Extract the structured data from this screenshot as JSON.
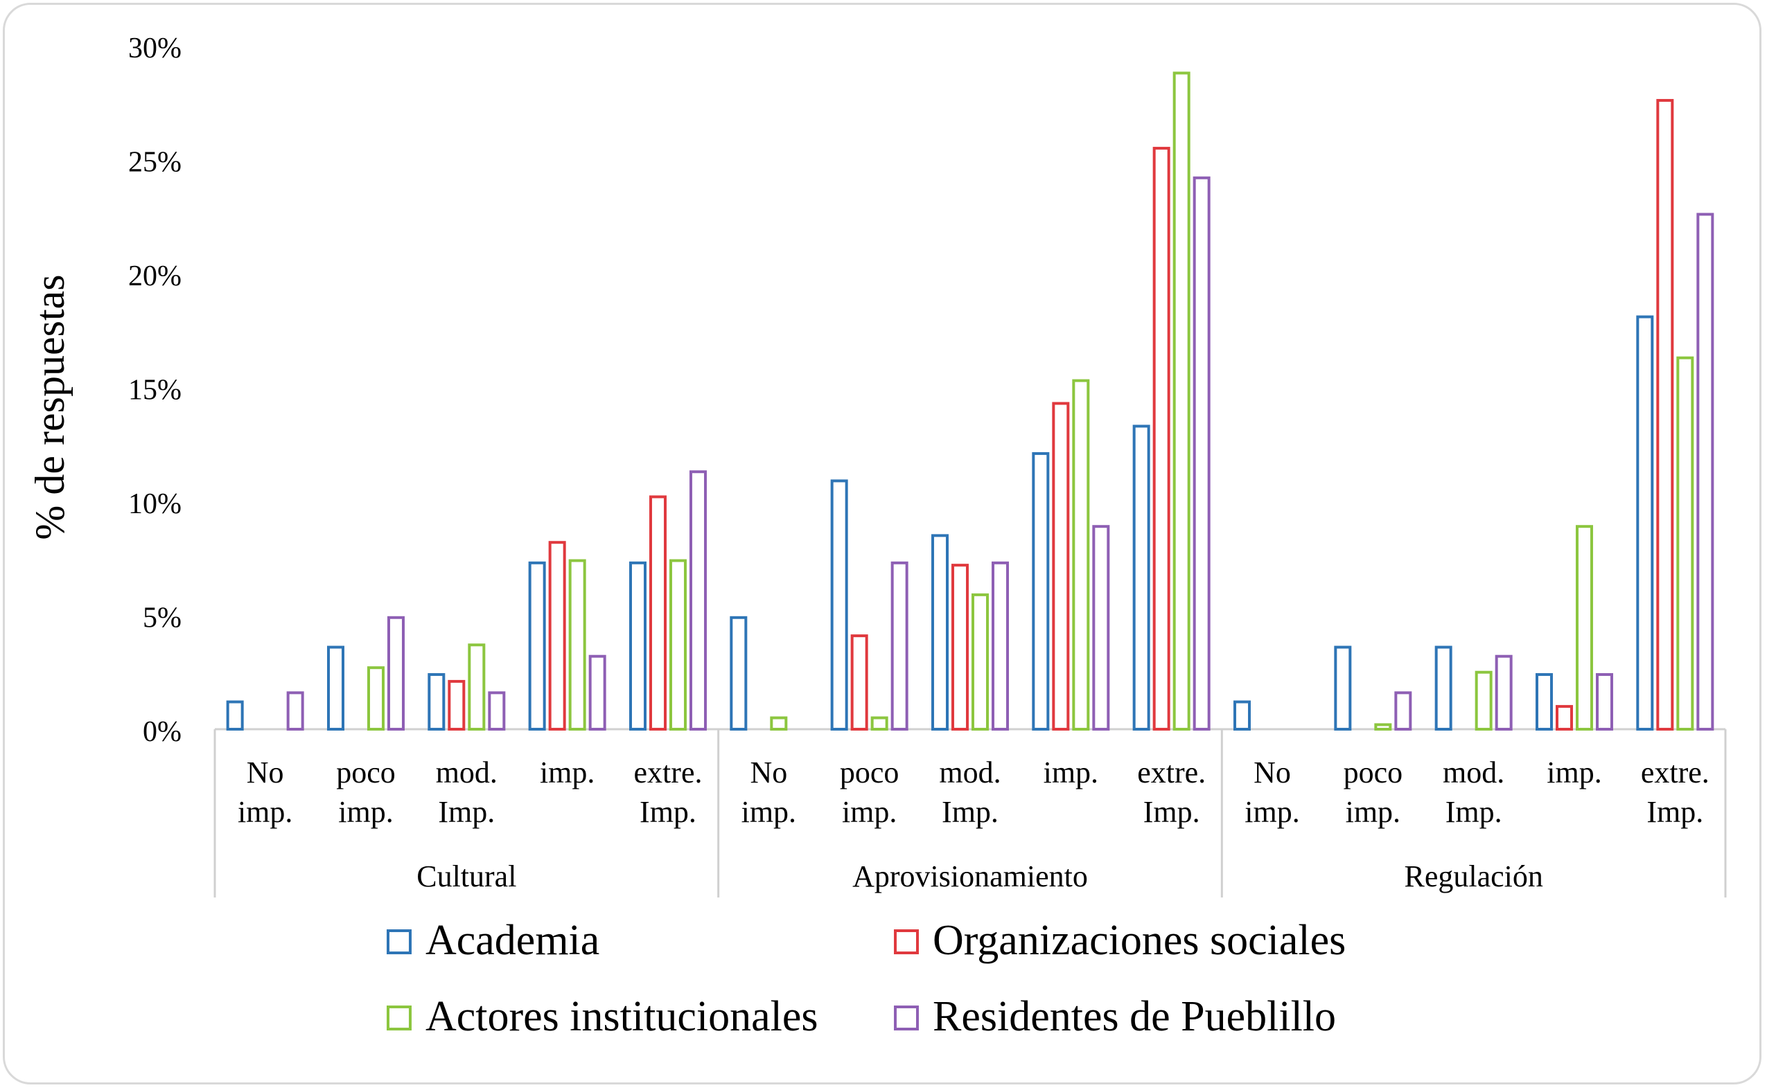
{
  "chart_data": {
    "type": "bar",
    "title": "",
    "ylabel": "% de respuestas",
    "xlabel": "",
    "ylim": [
      0,
      30
    ],
    "yticks": [
      "0%",
      "5%",
      "10%",
      "15%",
      "20%",
      "25%",
      "30%"
    ],
    "grid": false,
    "legend_position": "bottom",
    "groups": [
      {
        "name": "Cultural",
        "subcategories": [
          [
            "No",
            "imp."
          ],
          [
            "poco",
            "imp."
          ],
          [
            "mod.",
            "Imp."
          ],
          [
            "imp."
          ],
          [
            "extre.",
            "Imp."
          ]
        ]
      },
      {
        "name": "Aprovisionamiento",
        "subcategories": [
          [
            "No",
            "imp."
          ],
          [
            "poco",
            "imp."
          ],
          [
            "mod.",
            "Imp."
          ],
          [
            "imp."
          ],
          [
            "extre.",
            "Imp."
          ]
        ]
      },
      {
        "name": "Regulación",
        "subcategories": [
          [
            "No",
            "imp."
          ],
          [
            "poco",
            "imp."
          ],
          [
            "mod.",
            "Imp."
          ],
          [
            "imp."
          ],
          [
            "extre.",
            "Imp."
          ]
        ]
      }
    ],
    "series": [
      {
        "name": "Academia",
        "color": "#2e75b6",
        "values": [
          1.2,
          3.6,
          2.4,
          7.3,
          7.3,
          4.9,
          10.9,
          8.5,
          12.1,
          13.3,
          1.2,
          3.6,
          3.6,
          2.4,
          18.1
        ]
      },
      {
        "name": "Organizaciones sociales",
        "color": "#e0393e",
        "values": [
          0,
          0,
          2.1,
          8.2,
          10.2,
          0,
          4.1,
          7.2,
          14.3,
          25.5,
          0,
          0,
          0,
          1.0,
          27.6
        ]
      },
      {
        "name": "Actores institucionales",
        "color": "#8cc63f",
        "values": [
          0,
          2.7,
          3.7,
          7.4,
          7.4,
          0.5,
          0.5,
          5.9,
          15.3,
          28.8,
          0,
          0.2,
          2.5,
          8.9,
          16.3
        ]
      },
      {
        "name": "Residentes de Pueblillo",
        "color": "#8e5fb4",
        "values": [
          1.6,
          4.9,
          1.6,
          3.2,
          11.3,
          0,
          7.3,
          7.3,
          8.9,
          24.2,
          0,
          1.6,
          3.2,
          2.4,
          22.6
        ]
      }
    ]
  }
}
